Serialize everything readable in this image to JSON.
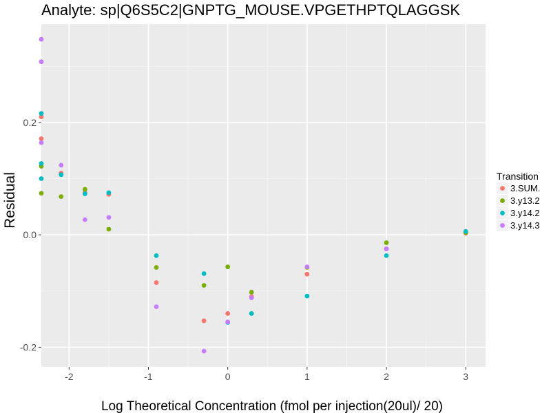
{
  "chart_data": {
    "type": "scatter",
    "title": "Analyte: sp|Q6S5C2|GNPTG_MOUSE.VPGETHPTQLAGGSK",
    "xlabel": "Log Theoretical Concentration (fmol per injection(20ul)/ 20)",
    "ylabel": "Residual",
    "xlim": [
      -2.35,
      3.25
    ],
    "ylim": [
      -0.235,
      0.375
    ],
    "x_ticks": [
      -2,
      -1,
      0,
      1,
      2,
      3
    ],
    "x_tick_labels": [
      "-2",
      "-1",
      "0",
      "1",
      "2",
      "3"
    ],
    "y_ticks": [
      -0.2,
      0.0,
      0.2
    ],
    "y_tick_labels": [
      "-0.2",
      "0.0",
      "0.2"
    ],
    "x_minor_ticks": [
      -1.5,
      -0.5,
      0.5,
      1.5,
      2.5
    ],
    "y_minor_ticks": [
      -0.1,
      0.1,
      0.3
    ],
    "grid": true,
    "background": "#ebebeb",
    "legend": {
      "title": "Transition",
      "position": "right"
    },
    "series": [
      {
        "name": "3.SUM.",
        "color": "#F8766D",
        "points": [
          [
            -2.35,
            0.21
          ],
          [
            -2.35,
            0.171
          ],
          [
            -2.1,
            0.11
          ],
          [
            -1.8,
            0.075
          ],
          [
            -1.5,
            0.072
          ],
          [
            -0.9,
            -0.085
          ],
          [
            -0.3,
            -0.153
          ],
          [
            0.0,
            -0.14
          ],
          [
            0.3,
            -0.11
          ],
          [
            1.0,
            -0.07
          ],
          [
            2.0,
            -0.025
          ],
          [
            3.0,
            0.003
          ]
        ]
      },
      {
        "name": "3.y13.2",
        "color": "#7CAE00",
        "points": [
          [
            -2.35,
            0.122
          ],
          [
            -2.35,
            0.074
          ],
          [
            -2.1,
            0.068
          ],
          [
            -1.8,
            0.081
          ],
          [
            -1.5,
            0.01
          ],
          [
            -0.9,
            -0.058
          ],
          [
            -0.3,
            -0.09
          ],
          [
            0.0,
            -0.057
          ],
          [
            0.3,
            -0.102
          ],
          [
            1.0,
            -0.058
          ],
          [
            2.0,
            -0.014
          ],
          [
            3.0,
            0.004
          ]
        ]
      },
      {
        "name": "3.y14.2",
        "color": "#00BFC4",
        "points": [
          [
            -2.35,
            0.216
          ],
          [
            -2.35,
            0.127
          ],
          [
            -2.35,
            0.1
          ],
          [
            -2.1,
            0.107
          ],
          [
            -1.8,
            0.073
          ],
          [
            -1.5,
            0.075
          ],
          [
            -0.9,
            -0.037
          ],
          [
            -0.3,
            -0.069
          ],
          [
            0.0,
            -0.156
          ],
          [
            0.3,
            -0.14
          ],
          [
            1.0,
            -0.109
          ],
          [
            2.0,
            -0.037
          ],
          [
            3.0,
            0.006
          ]
        ]
      },
      {
        "name": "3.y14.3",
        "color": "#C77CFF",
        "points": [
          [
            -2.35,
            0.348
          ],
          [
            -2.35,
            0.308
          ],
          [
            -2.35,
            0.164
          ],
          [
            -2.1,
            0.124
          ],
          [
            -1.8,
            0.027
          ],
          [
            -1.5,
            0.031
          ],
          [
            -0.9,
            -0.128
          ],
          [
            -0.3,
            -0.207
          ],
          [
            0.0,
            -0.155
          ],
          [
            0.3,
            -0.112
          ],
          [
            1.0,
            -0.057
          ],
          [
            2.0,
            -0.025
          ]
        ]
      }
    ]
  }
}
